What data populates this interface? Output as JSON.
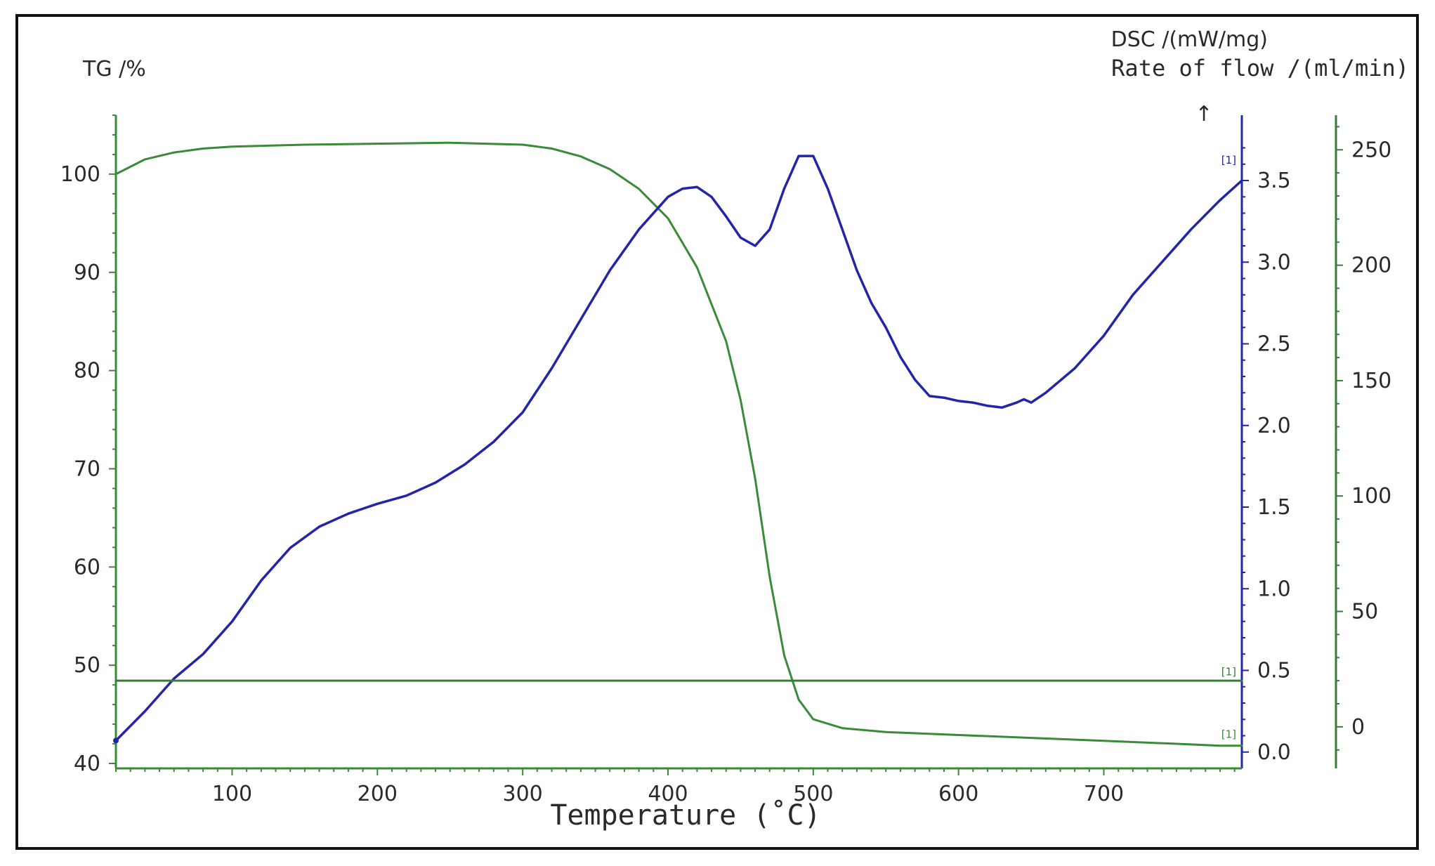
{
  "chart_data": {
    "type": "line",
    "colors": {
      "tg": "#3a8a3a",
      "dsc": "#2424aa",
      "flow": "#3a7a3a",
      "axis_text": "#2a2a2a"
    },
    "x_axis": {
      "label": "Temperature (˚C)",
      "range": [
        20,
        795
      ],
      "ticks": [
        100,
        200,
        300,
        400,
        500,
        600,
        700
      ]
    },
    "y_axes": {
      "tg": {
        "label": "TG /%",
        "range": [
          39.5,
          106
        ],
        "ticks": [
          40,
          50,
          60,
          70,
          80,
          90,
          100
        ]
      },
      "dsc": {
        "label": "DSC /(mW/mg)",
        "range": [
          -0.1,
          3.9
        ],
        "ticks": [
          0.0,
          0.5,
          1.0,
          1.5,
          2.0,
          2.5,
          3.0,
          3.5
        ],
        "tick_labels": [
          "0.0",
          "0.5",
          "1.0",
          "1.5",
          "2.0",
          "2.5",
          "3.0",
          "3.5"
        ],
        "exo_arrow": "↑"
      },
      "flow": {
        "label": "Rate of flow /(ml/min)",
        "range": [
          -18,
          265
        ],
        "ticks": [
          0,
          50,
          100,
          150,
          200,
          250
        ]
      }
    },
    "series": [
      {
        "key": "tg",
        "axis": "tg",
        "x": [
          20,
          40,
          60,
          80,
          100,
          150,
          200,
          250,
          300,
          320,
          340,
          360,
          380,
          400,
          420,
          440,
          450,
          460,
          470,
          480,
          490,
          500,
          520,
          550,
          600,
          650,
          700,
          750,
          780,
          795
        ],
        "y": [
          100,
          101.5,
          102.2,
          102.6,
          102.8,
          103.0,
          103.1,
          103.2,
          103.0,
          102.6,
          101.8,
          100.5,
          98.5,
          95.5,
          90.5,
          83,
          77,
          69,
          59,
          51,
          46.5,
          44.5,
          43.6,
          43.2,
          42.9,
          42.6,
          42.3,
          42.0,
          41.8,
          41.8
        ]
      },
      {
        "key": "dsc",
        "axis": "dsc",
        "x": [
          20,
          40,
          60,
          80,
          100,
          120,
          140,
          160,
          180,
          200,
          220,
          240,
          260,
          280,
          300,
          320,
          340,
          360,
          380,
          400,
          410,
          420,
          430,
          440,
          450,
          460,
          470,
          480,
          490,
          500,
          510,
          520,
          530,
          540,
          550,
          560,
          570,
          580,
          590,
          600,
          610,
          620,
          630,
          640,
          645,
          650,
          660,
          680,
          700,
          720,
          740,
          760,
          780,
          795
        ],
        "y": [
          0.07,
          0.25,
          0.45,
          0.6,
          0.8,
          1.05,
          1.25,
          1.38,
          1.46,
          1.52,
          1.57,
          1.65,
          1.76,
          1.9,
          2.08,
          2.35,
          2.65,
          2.95,
          3.2,
          3.4,
          3.45,
          3.46,
          3.4,
          3.28,
          3.15,
          3.1,
          3.2,
          3.45,
          3.65,
          3.65,
          3.45,
          3.2,
          2.95,
          2.75,
          2.6,
          2.42,
          2.28,
          2.18,
          2.17,
          2.15,
          2.14,
          2.12,
          2.11,
          2.14,
          2.16,
          2.14,
          2.2,
          2.35,
          2.55,
          2.8,
          3.0,
          3.2,
          3.38,
          3.5
        ]
      },
      {
        "key": "flow",
        "axis": "flow",
        "x": [
          20,
          795
        ],
        "y": [
          20,
          20
        ]
      }
    ],
    "series_markers": [
      {
        "series": "dsc",
        "x": 786,
        "y": 3.62,
        "text": "[1]"
      },
      {
        "series": "flow",
        "x": 786,
        "y": 23.5,
        "text": "[1]"
      },
      {
        "series": "tg",
        "x": 786,
        "y": 42.9,
        "text": "[1]"
      }
    ],
    "grid": false
  }
}
